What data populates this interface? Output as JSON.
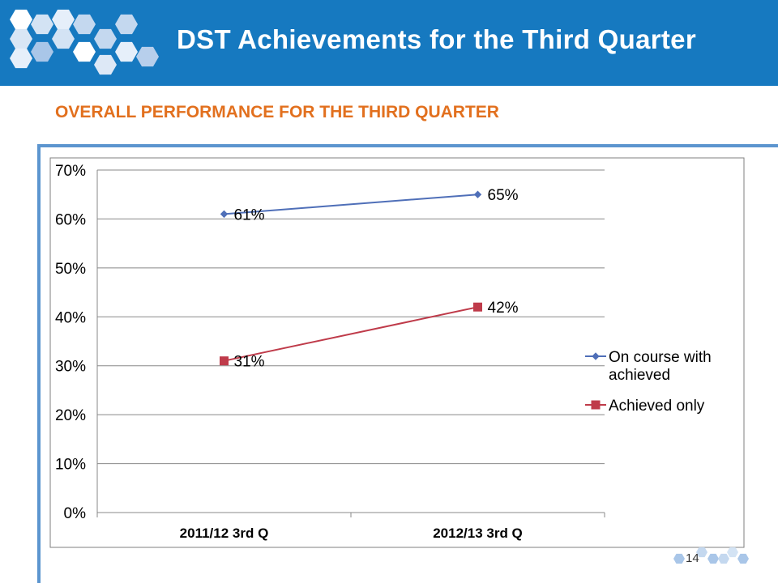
{
  "slide": {
    "title": "DST Achievements for the Third Quarter",
    "subtitle": "OVERALL PERFORMANCE FOR THE THIRD QUARTER",
    "page_number": "14"
  },
  "colors": {
    "header": "#1679c0",
    "subtitle": "#e2701e",
    "frame": "#5c95cf"
  },
  "chart_data": {
    "type": "line",
    "categories": [
      "2011/12 3rd Q",
      "2012/13 3rd Q"
    ],
    "ylim": [
      0,
      70
    ],
    "yticks": [
      "0%",
      "10%",
      "20%",
      "30%",
      "40%",
      "50%",
      "60%",
      "70%"
    ],
    "ytick_values": [
      0,
      10,
      20,
      30,
      40,
      50,
      60,
      70
    ],
    "grid": true,
    "legend_position": "right",
    "series": [
      {
        "name": "On course with achieved",
        "values": [
          61,
          65
        ],
        "labels": [
          "61%",
          "65%"
        ],
        "color": "#4f6fb8",
        "marker": "diamond"
      },
      {
        "name": "Achieved only",
        "values": [
          31,
          42
        ],
        "labels": [
          "31%",
          "42%"
        ],
        "color": "#bf3b4a",
        "marker": "square"
      }
    ]
  }
}
